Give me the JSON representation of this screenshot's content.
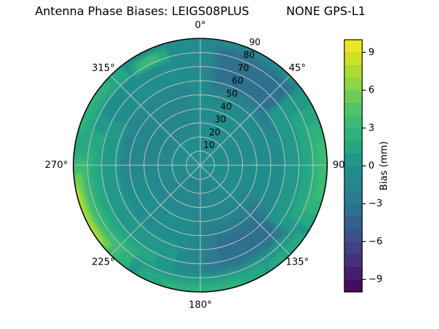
{
  "title": "Antenna Phase Biases: LEIGS08PLUS          NONE GPS-L1",
  "colors": {
    "background": "#ffffff",
    "grid": "#bfc7c7",
    "outline": "#000000",
    "text": "#000000",
    "viridis_stops": [
      [
        0.0,
        "#440154"
      ],
      [
        0.1,
        "#482878"
      ],
      [
        0.2,
        "#3e4989"
      ],
      [
        0.3,
        "#31688e"
      ],
      [
        0.4,
        "#26828e"
      ],
      [
        0.5,
        "#21918c"
      ],
      [
        0.6,
        "#28ae80"
      ],
      [
        0.7,
        "#44be70"
      ],
      [
        0.8,
        "#7ad151"
      ],
      [
        0.9,
        "#bddf26"
      ],
      [
        1.0,
        "#fde725"
      ]
    ]
  },
  "chart_data": {
    "type": "polar_contour",
    "title": "Antenna Phase Biases: LEIGS08PLUS          NONE GPS-L1",
    "antenna": "LEIGS08PLUS",
    "radome": "NONE",
    "signal": "GPS-L1",
    "colormap": "viridis",
    "azimuth_ticks": [
      {
        "label": "0°",
        "az": 0
      },
      {
        "label": "45°",
        "az": 45
      },
      {
        "label": "90",
        "az": 90
      },
      {
        "label": "135°",
        "az": 135
      },
      {
        "label": "180°",
        "az": 180
      },
      {
        "label": "225°",
        "az": 225
      },
      {
        "label": "270°",
        "az": 270
      },
      {
        "label": "315°",
        "az": 315
      }
    ],
    "radial_tick_labels": [
      "10",
      "20",
      "30",
      "40",
      "50",
      "60",
      "70",
      "80",
      "90"
    ],
    "radial_range": [
      0,
      90
    ],
    "radial_label_azimuth_deg": 24,
    "grid": true,
    "colorbar": {
      "label": "Bias (mm)",
      "tick_values": [
        9,
        6,
        3,
        0,
        -3,
        -6,
        -9
      ],
      "tick_labels": [
        "9",
        "6",
        "3",
        "0",
        "−3",
        "−6",
        "−9"
      ],
      "range_mm": [
        -10,
        10
      ],
      "level_step_mm": 1,
      "n_bands": 20,
      "position": "right"
    },
    "base_bias_mm": -0.5,
    "features": [
      {
        "name": "NE-negative-envelope",
        "az": [
          3,
          68
        ],
        "el": [
          48,
          88
        ],
        "bias_mm": -1.5
      },
      {
        "name": "NE-negative-mid",
        "az": [
          7,
          60
        ],
        "el": [
          54,
          86
        ],
        "bias_mm": -2.5
      },
      {
        "name": "NE-negative-core",
        "az": [
          10,
          50
        ],
        "el": [
          60,
          83
        ],
        "bias_mm": -3.5
      },
      {
        "name": "SE-negative-envelope",
        "az": [
          118,
          188
        ],
        "el": [
          34,
          80
        ],
        "bias_mm": -1.5
      },
      {
        "name": "SE-negative-mid",
        "az": [
          126,
          177
        ],
        "el": [
          44,
          76
        ],
        "bias_mm": -2.5
      },
      {
        "name": "SE-negative-core",
        "az": [
          131,
          168
        ],
        "el": [
          53,
          72
        ],
        "bias_mm": -3.5
      },
      {
        "name": "S-inner-negative",
        "az": [
          140,
          255
        ],
        "el": [
          8,
          36
        ],
        "bias_mm": -1.5
      },
      {
        "name": "W-inner-negative",
        "az": [
          258,
          352
        ],
        "el": [
          20,
          58
        ],
        "bias_mm": -1.5
      },
      {
        "name": "SW-positive-envelope",
        "az": [
          195,
          298
        ],
        "el": [
          58,
          90
        ],
        "bias_mm": 0.5
      },
      {
        "name": "SW-positive-1",
        "az": [
          205,
          288
        ],
        "el": [
          70,
          90
        ],
        "bias_mm": 1.5
      },
      {
        "name": "SW-positive-2",
        "az": [
          215,
          280
        ],
        "el": [
          76,
          90
        ],
        "bias_mm": 2.5
      },
      {
        "name": "SW-positive-3",
        "az": [
          222,
          272
        ],
        "el": [
          80,
          90
        ],
        "bias_mm": 3.5
      },
      {
        "name": "SW-positive-4",
        "az": [
          228,
          266
        ],
        "el": [
          84,
          90
        ],
        "bias_mm": 5.5
      },
      {
        "name": "SW-positive-peak",
        "az": [
          232,
          260
        ],
        "el": [
          87,
          90
        ],
        "bias_mm": 7.5
      },
      {
        "name": "E-positive-envelope",
        "az": [
          52,
          128
        ],
        "el": [
          60,
          90
        ],
        "bias_mm": 0.5
      },
      {
        "name": "E-positive-1",
        "az": [
          62,
          120
        ],
        "el": [
          72,
          90
        ],
        "bias_mm": 1.5
      },
      {
        "name": "E-positive-2",
        "az": [
          70,
          114
        ],
        "el": [
          79,
          90
        ],
        "bias_mm": 2.5
      },
      {
        "name": "E-positive-3",
        "az": [
          78,
          106
        ],
        "el": [
          84,
          90
        ],
        "bias_mm": 3.5
      },
      {
        "name": "S-rim-envelope",
        "az": [
          128,
          215
        ],
        "el": [
          78,
          90
        ],
        "bias_mm": 0.5
      },
      {
        "name": "S-rim-1",
        "az": [
          148,
          210
        ],
        "el": [
          82,
          90
        ],
        "bias_mm": 1.5
      },
      {
        "name": "S-rim-2",
        "az": [
          160,
          198
        ],
        "el": [
          86,
          90
        ],
        "bias_mm": 2.5
      },
      {
        "name": "SE-rim",
        "az": [
          124,
          146
        ],
        "el": [
          84,
          90
        ],
        "bias_mm": 1.5
      },
      {
        "name": "W-rim-1",
        "az": [
          276,
          322
        ],
        "el": [
          80,
          90
        ],
        "bias_mm": 1.5
      },
      {
        "name": "W-rim-2",
        "az": [
          286,
          312
        ],
        "el": [
          85,
          90
        ],
        "bias_mm": 2.5
      },
      {
        "name": "NW-streak-envelope",
        "az": [
          324,
          344
        ],
        "el": [
          77,
          87
        ],
        "bias_mm": 1.5
      },
      {
        "name": "NW-streak-mid",
        "az": [
          327,
          340
        ],
        "el": [
          79,
          85
        ],
        "bias_mm": 2.5
      },
      {
        "name": "NW-streak-core",
        "az": [
          329,
          338
        ],
        "el": [
          80.5,
          84.5
        ],
        "bias_mm": 3.5
      }
    ]
  }
}
